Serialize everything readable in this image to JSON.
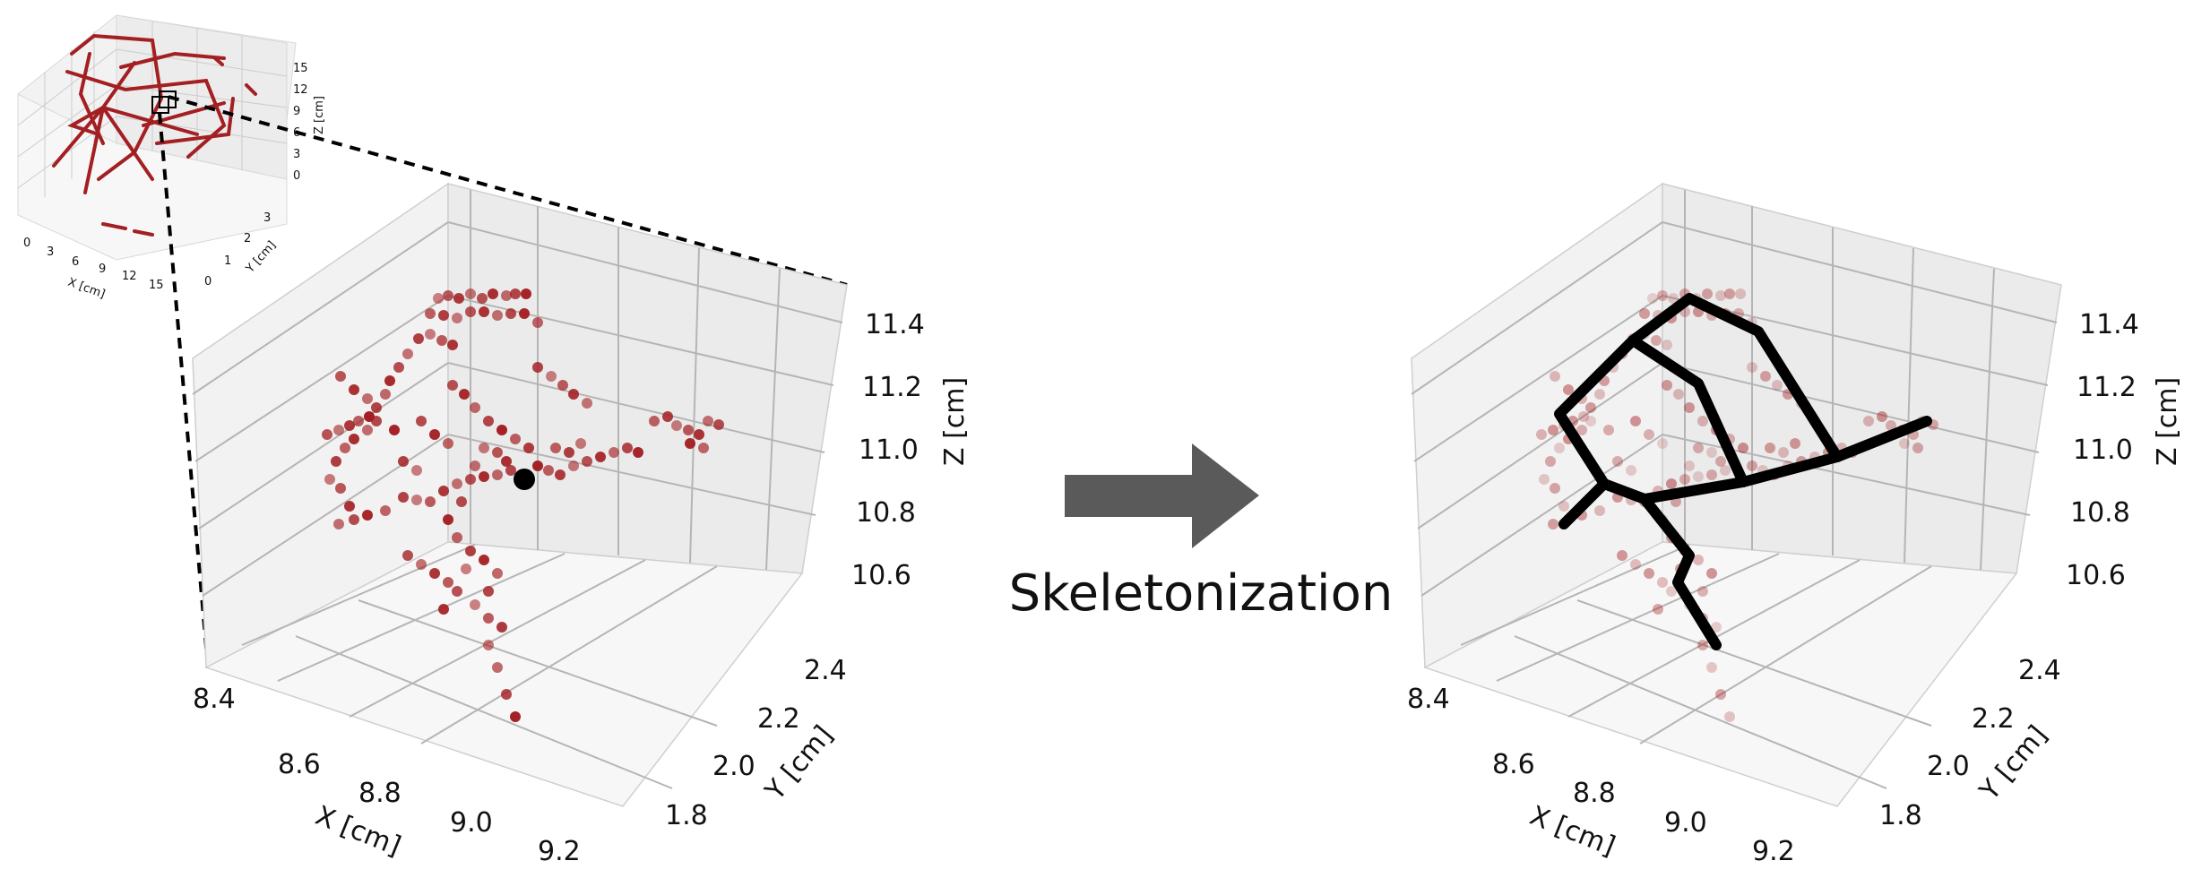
{
  "axes": {
    "x_label": "X [cm]",
    "y_label": "Y [cm]",
    "z_label": "Z [cm]",
    "x_ticks": [
      "8.4",
      "8.6",
      "8.8",
      "9.0",
      "9.2"
    ],
    "y_ticks": [
      "1.8",
      "2.0",
      "2.2",
      "2.4"
    ],
    "z_ticks": [
      "10.6",
      "10.8",
      "11.0",
      "11.2",
      "11.4"
    ]
  },
  "overview": {
    "x_label": "X [cm]",
    "y_label": "Y [cm]",
    "z_label": "Z [cm]",
    "x_ticks": [
      "0",
      "3",
      "6",
      "9",
      "12",
      "15"
    ],
    "y_ticks": [
      "0",
      "1",
      "2",
      "3"
    ],
    "z_ticks": [
      "0",
      "3",
      "6",
      "9",
      "12",
      "15"
    ]
  },
  "process_label": "Skeletonization",
  "colors": {
    "points": "#a31f22",
    "pane": "#ececec",
    "grid": "#b5b5b5",
    "skeleton": "#000000",
    "arrow": "#5a5a5a",
    "highlight": "#000000"
  }
}
